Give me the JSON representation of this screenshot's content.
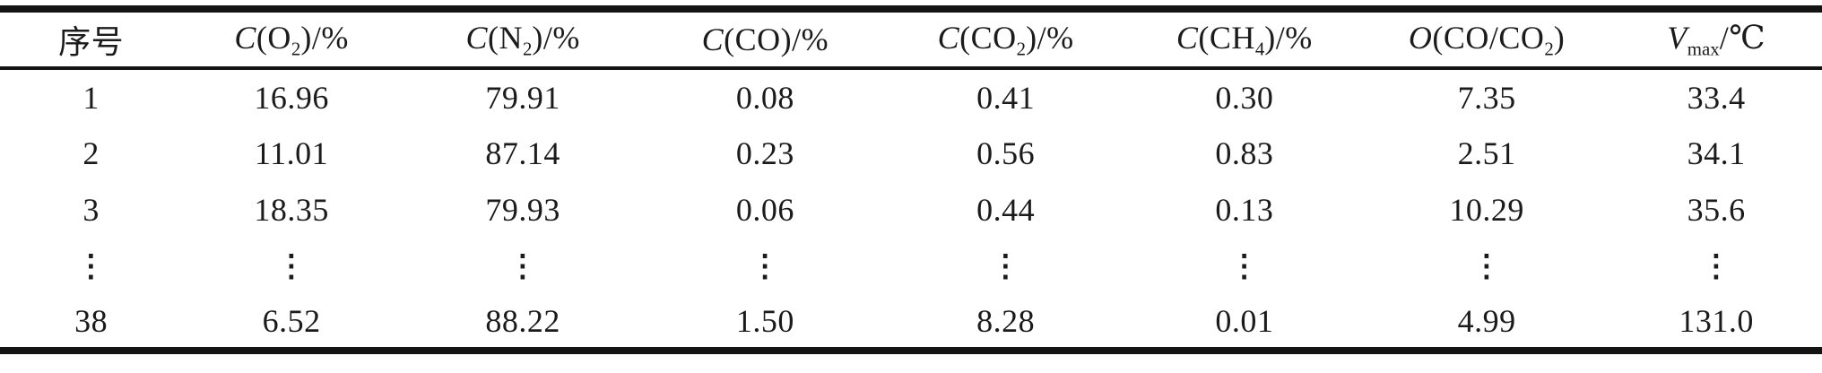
{
  "table": {
    "columns": [
      {
        "key": "index",
        "segments": [
          {
            "text": "序号"
          }
        ]
      },
      {
        "key": "c-o2",
        "segments": [
          {
            "text": "C",
            "italic": true
          },
          {
            "text": "(O"
          },
          {
            "text": "2",
            "sub": true
          },
          {
            "text": ")/%"
          }
        ]
      },
      {
        "key": "c-n2",
        "segments": [
          {
            "text": "C",
            "italic": true
          },
          {
            "text": "(N"
          },
          {
            "text": "2",
            "sub": true
          },
          {
            "text": ")/%"
          }
        ]
      },
      {
        "key": "c-co",
        "segments": [
          {
            "text": "C",
            "italic": true
          },
          {
            "text": "(CO)/%"
          }
        ]
      },
      {
        "key": "c-co2",
        "segments": [
          {
            "text": "C",
            "italic": true
          },
          {
            "text": "(CO"
          },
          {
            "text": "2",
            "sub": true
          },
          {
            "text": ")/%"
          }
        ]
      },
      {
        "key": "c-ch4",
        "segments": [
          {
            "text": "C",
            "italic": true
          },
          {
            "text": "(CH"
          },
          {
            "text": "4",
            "sub": true
          },
          {
            "text": ")/%"
          }
        ]
      },
      {
        "key": "o-co-co2",
        "segments": [
          {
            "text": "O",
            "italic": true
          },
          {
            "text": "(CO/CO"
          },
          {
            "text": "2",
            "sub": true
          },
          {
            "text": ")"
          }
        ]
      },
      {
        "key": "v-max",
        "segments": [
          {
            "text": "V",
            "italic": true
          },
          {
            "text": "max",
            "sub": true
          },
          {
            "text": "/℃"
          }
        ]
      }
    ],
    "rows": [
      {
        "name": "table-row-1",
        "cells": [
          "1",
          "16.96",
          "79.91",
          "0.08",
          "0.41",
          "0.30",
          "7.35",
          "33.4"
        ]
      },
      {
        "name": "table-row-2",
        "cells": [
          "2",
          "11.01",
          "87.14",
          "0.23",
          "0.56",
          "0.83",
          "2.51",
          "34.1"
        ]
      },
      {
        "name": "table-row-3",
        "cells": [
          "3",
          "18.35",
          "79.93",
          "0.06",
          "0.44",
          "0.13",
          "10.29",
          "35.6"
        ]
      },
      {
        "name": "table-row-ellipsis",
        "cells": [
          "⋮",
          "⋮",
          "⋮",
          "⋮",
          "⋮",
          "⋮",
          "⋮",
          "⋮"
        ],
        "ellipsis": true
      },
      {
        "name": "table-row-38",
        "cells": [
          "38",
          "6.52",
          "88.22",
          "1.50",
          "8.28",
          "0.01",
          "4.99",
          "131.0"
        ]
      }
    ]
  }
}
